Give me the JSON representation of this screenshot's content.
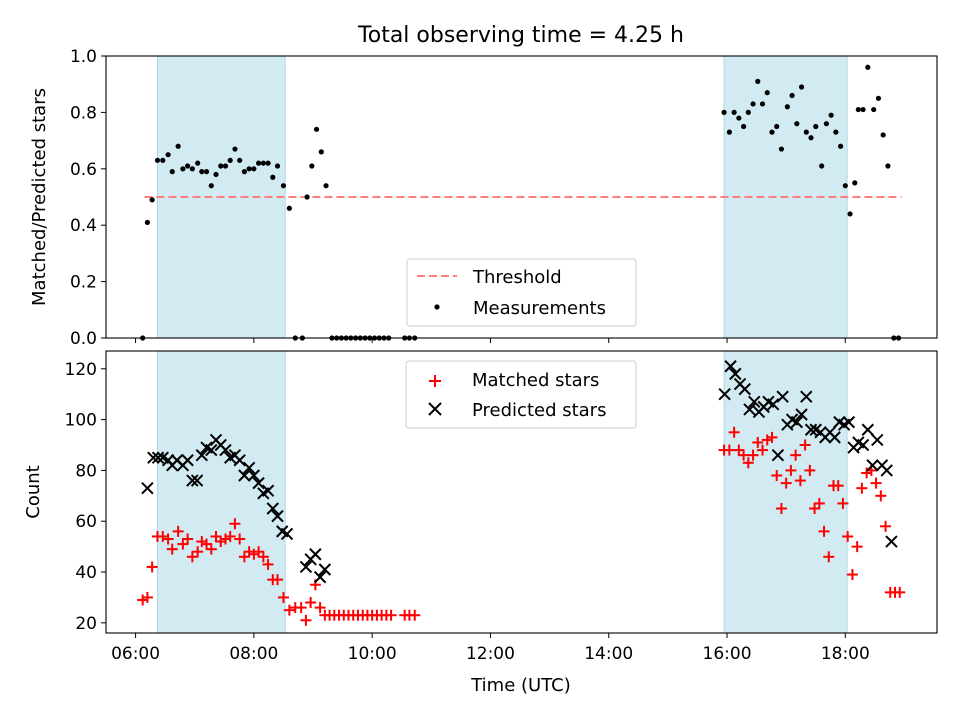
{
  "figure_title": "Total observing time = 4.25 h",
  "colors": {
    "shade": "#add8e6",
    "threshold": "#ff7f7f",
    "measure": "#000000",
    "matched": "#ff0000",
    "predicted": "#000000"
  },
  "chart_data": [
    {
      "type": "scatter",
      "ylabel": "Matched/Predicted stars",
      "xlim": [
        5.5,
        19.55
      ],
      "ylim": [
        0,
        1.0
      ],
      "yticks": [
        "0.0",
        "0.2",
        "0.4",
        "0.6",
        "0.8",
        "1.0"
      ],
      "shaded_intervals": [
        [
          6.37,
          8.53
        ],
        [
          15.95,
          18.03
        ]
      ],
      "legend": {
        "position": "lower center",
        "threshold_label": "Threshold",
        "measure_label": "Measurements"
      },
      "threshold": {
        "name": "Threshold",
        "value": 0.5,
        "x": [
          6.15,
          18.95
        ]
      },
      "measurements": {
        "name": "Measurements",
        "points": [
          [
            6.12,
            0.0
          ],
          [
            6.2,
            0.41
          ],
          [
            6.28,
            0.49
          ],
          [
            6.37,
            0.63
          ],
          [
            6.46,
            0.63
          ],
          [
            6.55,
            0.65
          ],
          [
            6.62,
            0.59
          ],
          [
            6.72,
            0.68
          ],
          [
            6.8,
            0.6
          ],
          [
            6.88,
            0.61
          ],
          [
            6.96,
            0.6
          ],
          [
            7.05,
            0.62
          ],
          [
            7.12,
            0.59
          ],
          [
            7.2,
            0.59
          ],
          [
            7.28,
            0.54
          ],
          [
            7.36,
            0.58
          ],
          [
            7.44,
            0.61
          ],
          [
            7.52,
            0.61
          ],
          [
            7.6,
            0.63
          ],
          [
            7.68,
            0.67
          ],
          [
            7.76,
            0.63
          ],
          [
            7.84,
            0.59
          ],
          [
            7.92,
            0.6
          ],
          [
            8.0,
            0.6
          ],
          [
            8.08,
            0.62
          ],
          [
            8.16,
            0.62
          ],
          [
            8.24,
            0.62
          ],
          [
            8.32,
            0.57
          ],
          [
            8.4,
            0.61
          ],
          [
            8.5,
            0.54
          ],
          [
            8.6,
            0.46
          ],
          [
            8.7,
            0.0
          ],
          [
            8.82,
            0.0
          ],
          [
            8.9,
            0.5
          ],
          [
            8.98,
            0.61
          ],
          [
            9.06,
            0.74
          ],
          [
            9.14,
            0.66
          ],
          [
            9.22,
            0.54
          ],
          [
            9.32,
            0.0
          ],
          [
            9.4,
            0.0
          ],
          [
            9.48,
            0.0
          ],
          [
            9.56,
            0.0
          ],
          [
            9.64,
            0.0
          ],
          [
            9.72,
            0.0
          ],
          [
            9.8,
            0.0
          ],
          [
            9.88,
            0.0
          ],
          [
            9.96,
            0.0
          ],
          [
            10.04,
            0.0
          ],
          [
            10.12,
            0.0
          ],
          [
            10.2,
            0.0
          ],
          [
            10.28,
            0.0
          ],
          [
            10.55,
            0.0
          ],
          [
            10.63,
            0.0
          ],
          [
            10.72,
            0.0
          ],
          [
            15.95,
            0.8
          ],
          [
            16.04,
            0.73
          ],
          [
            16.12,
            0.8
          ],
          [
            16.2,
            0.78
          ],
          [
            16.28,
            0.75
          ],
          [
            16.36,
            0.8
          ],
          [
            16.44,
            0.83
          ],
          [
            16.52,
            0.91
          ],
          [
            16.6,
            0.83
          ],
          [
            16.68,
            0.87
          ],
          [
            16.76,
            0.73
          ],
          [
            16.84,
            0.75
          ],
          [
            16.92,
            0.67
          ],
          [
            17.02,
            0.82
          ],
          [
            17.1,
            0.86
          ],
          [
            17.18,
            0.76
          ],
          [
            17.26,
            0.89
          ],
          [
            17.34,
            0.73
          ],
          [
            17.42,
            0.71
          ],
          [
            17.5,
            0.75
          ],
          [
            17.6,
            0.61
          ],
          [
            17.68,
            0.76
          ],
          [
            17.76,
            0.79
          ],
          [
            17.84,
            0.73
          ],
          [
            17.92,
            0.68
          ],
          [
            18.0,
            0.54
          ],
          [
            18.08,
            0.44
          ],
          [
            18.16,
            0.55
          ],
          [
            18.22,
            0.81
          ],
          [
            18.3,
            0.81
          ],
          [
            18.38,
            0.96
          ],
          [
            18.48,
            0.81
          ],
          [
            18.56,
            0.85
          ],
          [
            18.64,
            0.72
          ],
          [
            18.72,
            0.61
          ],
          [
            18.82,
            0.0
          ],
          [
            18.9,
            0.0
          ]
        ]
      }
    },
    {
      "type": "scatter",
      "xlabel": "Time (UTC)",
      "ylabel": "Count",
      "xlim": [
        5.5,
        19.55
      ],
      "ylim": [
        16,
        127
      ],
      "xticks": [
        6,
        8,
        10,
        12,
        14,
        16,
        18
      ],
      "xtick_labels": [
        "06:00",
        "08:00",
        "10:00",
        "12:00",
        "14:00",
        "16:00",
        "18:00"
      ],
      "yticks": [
        20,
        40,
        60,
        80,
        100,
        120
      ],
      "shaded_intervals": [
        [
          6.37,
          8.53
        ],
        [
          15.95,
          18.03
        ]
      ],
      "legend": {
        "position": "upper center",
        "matched_label": "Matched stars",
        "predicted_label": "Predicted stars"
      },
      "series": [
        {
          "name": "Matched stars",
          "marker": "plus",
          "points": [
            [
              6.12,
              29
            ],
            [
              6.2,
              30
            ],
            [
              6.28,
              42
            ],
            [
              6.37,
              54
            ],
            [
              6.46,
              54
            ],
            [
              6.55,
              53
            ],
            [
              6.62,
              49
            ],
            [
              6.72,
              56
            ],
            [
              6.8,
              51
            ],
            [
              6.88,
              53
            ],
            [
              6.96,
              46
            ],
            [
              7.05,
              48
            ],
            [
              7.12,
              52
            ],
            [
              7.2,
              51
            ],
            [
              7.28,
              49
            ],
            [
              7.36,
              54
            ],
            [
              7.44,
              52
            ],
            [
              7.52,
              53
            ],
            [
              7.6,
              54
            ],
            [
              7.68,
              59
            ],
            [
              7.76,
              53
            ],
            [
              7.84,
              46
            ],
            [
              7.92,
              48
            ],
            [
              8.0,
              47
            ],
            [
              8.08,
              48
            ],
            [
              8.16,
              46
            ],
            [
              8.24,
              43
            ],
            [
              8.32,
              37
            ],
            [
              8.4,
              37
            ],
            [
              8.5,
              30
            ],
            [
              8.6,
              25
            ],
            [
              8.7,
              26
            ],
            [
              8.8,
              26
            ],
            [
              8.88,
              21
            ],
            [
              8.96,
              28
            ],
            [
              9.04,
              35
            ],
            [
              9.12,
              26
            ],
            [
              9.2,
              23
            ],
            [
              9.28,
              23
            ],
            [
              9.36,
              23
            ],
            [
              9.44,
              23
            ],
            [
              9.52,
              23
            ],
            [
              9.6,
              23
            ],
            [
              9.68,
              23
            ],
            [
              9.76,
              23
            ],
            [
              9.84,
              23
            ],
            [
              9.92,
              23
            ],
            [
              10.0,
              23
            ],
            [
              10.08,
              23
            ],
            [
              10.16,
              23
            ],
            [
              10.24,
              23
            ],
            [
              10.32,
              23
            ],
            [
              10.55,
              23
            ],
            [
              10.63,
              23
            ],
            [
              10.72,
              23
            ],
            [
              15.95,
              88
            ],
            [
              16.04,
              88
            ],
            [
              16.12,
              95
            ],
            [
              16.2,
              88
            ],
            [
              16.28,
              86
            ],
            [
              16.36,
              83
            ],
            [
              16.44,
              86
            ],
            [
              16.52,
              91
            ],
            [
              16.6,
              88
            ],
            [
              16.68,
              92
            ],
            [
              16.76,
              93
            ],
            [
              16.84,
              78
            ],
            [
              16.92,
              65
            ],
            [
              17.0,
              75
            ],
            [
              17.08,
              80
            ],
            [
              17.16,
              86
            ],
            [
              17.24,
              76
            ],
            [
              17.32,
              90
            ],
            [
              17.4,
              80
            ],
            [
              17.48,
              65
            ],
            [
              17.56,
              67
            ],
            [
              17.64,
              56
            ],
            [
              17.72,
              46
            ],
            [
              17.8,
              74
            ],
            [
              17.88,
              74
            ],
            [
              17.96,
              67
            ],
            [
              18.04,
              54
            ],
            [
              18.12,
              39
            ],
            [
              18.2,
              50
            ],
            [
              18.28,
              73
            ],
            [
              18.36,
              79
            ],
            [
              18.44,
              80
            ],
            [
              18.52,
              75
            ],
            [
              18.6,
              70
            ],
            [
              18.68,
              58
            ],
            [
              18.76,
              32
            ],
            [
              18.84,
              32
            ],
            [
              18.92,
              32
            ]
          ]
        },
        {
          "name": "Predicted stars",
          "marker": "x",
          "points": [
            [
              6.2,
              73
            ],
            [
              6.3,
              85
            ],
            [
              6.38,
              85
            ],
            [
              6.46,
              85
            ],
            [
              6.55,
              84
            ],
            [
              6.62,
              82
            ],
            [
              6.7,
              84
            ],
            [
              6.8,
              82
            ],
            [
              6.88,
              84
            ],
            [
              6.96,
              76
            ],
            [
              7.04,
              76
            ],
            [
              7.12,
              86
            ],
            [
              7.2,
              89
            ],
            [
              7.28,
              88
            ],
            [
              7.36,
              92
            ],
            [
              7.44,
              90
            ],
            [
              7.52,
              88
            ],
            [
              7.6,
              85
            ],
            [
              7.68,
              86
            ],
            [
              7.76,
              84
            ],
            [
              7.84,
              78
            ],
            [
              7.92,
              81
            ],
            [
              8.0,
              78
            ],
            [
              8.08,
              75
            ],
            [
              8.16,
              71
            ],
            [
              8.24,
              72
            ],
            [
              8.32,
              65
            ],
            [
              8.4,
              62
            ],
            [
              8.48,
              56
            ],
            [
              8.56,
              55
            ],
            [
              8.88,
              42
            ],
            [
              8.96,
              45
            ],
            [
              9.04,
              47
            ],
            [
              9.12,
              38
            ],
            [
              9.2,
              41
            ],
            [
              15.96,
              110
            ],
            [
              16.06,
              121
            ],
            [
              16.14,
              118
            ],
            [
              16.22,
              114
            ],
            [
              16.3,
              112
            ],
            [
              16.38,
              104
            ],
            [
              16.46,
              107
            ],
            [
              16.54,
              103
            ],
            [
              16.62,
              105
            ],
            [
              16.7,
              107
            ],
            [
              16.78,
              106
            ],
            [
              16.86,
              86
            ],
            [
              16.94,
              109
            ],
            [
              17.02,
              98
            ],
            [
              17.1,
              100
            ],
            [
              17.18,
              99
            ],
            [
              17.26,
              102
            ],
            [
              17.34,
              109
            ],
            [
              17.42,
              96
            ],
            [
              17.5,
              96
            ],
            [
              17.58,
              95
            ],
            [
              17.66,
              93
            ],
            [
              17.74,
              95
            ],
            [
              17.82,
              93
            ],
            [
              17.9,
              99
            ],
            [
              17.98,
              98
            ],
            [
              18.06,
              99
            ],
            [
              18.14,
              89
            ],
            [
              18.22,
              91
            ],
            [
              18.3,
              90
            ],
            [
              18.38,
              96
            ],
            [
              18.46,
              82
            ],
            [
              18.54,
              92
            ],
            [
              18.62,
              82
            ],
            [
              18.7,
              80
            ],
            [
              18.78,
              52
            ]
          ]
        }
      ]
    }
  ]
}
